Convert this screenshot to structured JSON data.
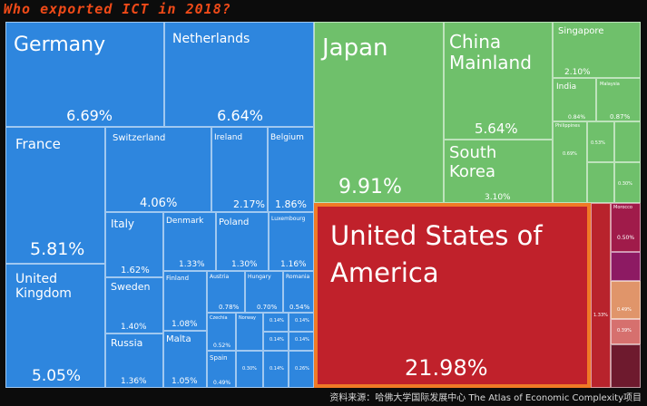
{
  "title": "Who exported ICT in 2018?",
  "source": "资料来源：哈佛大学国际发展中心 The Atlas of Economic Complexity项目",
  "colors": {
    "europe": "#2e86de",
    "asia": "#6fc06b",
    "america": "#c0212b",
    "highlight": "#f07a26",
    "title": "#f04a18"
  },
  "cells": {
    "germany": {
      "label": "Germany",
      "pct": "6.69%"
    },
    "netherlands": {
      "label": "Netherlands",
      "pct": "6.64%"
    },
    "france": {
      "label": "France",
      "pct": "5.81%"
    },
    "switzerland": {
      "label": "Switzerland",
      "pct": "4.06%"
    },
    "ireland": {
      "label": "Ireland",
      "pct": "2.17%"
    },
    "belgium": {
      "label": "Belgium",
      "pct": "1.86%"
    },
    "uk": {
      "label": "United\nKingdom",
      "pct": "5.05%"
    },
    "italy": {
      "label": "Italy",
      "pct": "1.62%"
    },
    "denmark": {
      "label": "Denmark",
      "pct": "1.33%"
    },
    "poland": {
      "label": "Poland",
      "pct": "1.30%"
    },
    "luxembourg": {
      "label": "Luxembourg",
      "pct": "1.16%"
    },
    "sweden": {
      "label": "Sweden",
      "pct": "1.40%"
    },
    "finland": {
      "label": "Finland",
      "pct": "1.08%"
    },
    "austria": {
      "label": "Austria",
      "pct": "0.78%"
    },
    "hungary": {
      "label": "Hungary",
      "pct": "0.70%"
    },
    "romania": {
      "label": "Romania",
      "pct": "0.54%"
    },
    "russia": {
      "label": "Russia",
      "pct": "1.36%"
    },
    "malta": {
      "label": "Malta",
      "pct": "1.05%"
    },
    "czechia": {
      "label": "Czechia",
      "pct": "0.52%"
    },
    "norway": {
      "label": "Norway",
      "pct": ""
    },
    "spain": {
      "label": "Spain",
      "pct": "0.49%"
    },
    "japan": {
      "label": "Japan",
      "pct": "9.91%"
    },
    "china": {
      "label": "China\nMainland",
      "pct": "5.64%"
    },
    "singapore": {
      "label": "Singapore",
      "pct": "2.10%"
    },
    "india": {
      "label": "India",
      "pct": "0.84%"
    },
    "malaysia": {
      "label": "Malaysia",
      "pct": "0.87%"
    },
    "philippines": {
      "label": "Philippines",
      "pct": ""
    },
    "south_korea": {
      "label": "South\nKorea",
      "pct": "3.10%"
    },
    "usa": {
      "label": "United States of\nAmerica",
      "pct": "21.98%"
    },
    "morocco": {
      "label": "Morocco",
      "pct": "0.50%"
    }
  },
  "small": {
    "tile1": "0.69%",
    "tile2": "0.53%",
    "tile3": "0.30%",
    "tile4": "0.14%",
    "tile5": "0.14%",
    "tile6": "0.14%",
    "tile7": "0.14%",
    "tile8": "0.14%",
    "tile9": "0.30%",
    "tile10": "0.26%",
    "america_small1": "1.33%",
    "america_small2": "0.49%",
    "america_small3": "0.39%"
  }
}
